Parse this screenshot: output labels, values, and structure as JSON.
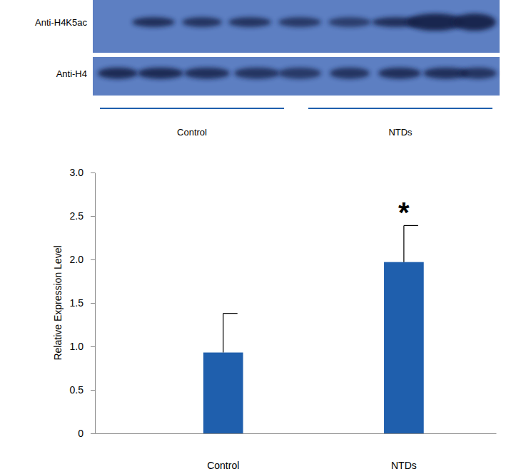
{
  "chart_data": {
    "type": "bar",
    "y_label": "Relative Expression Level",
    "categories": [
      "Control",
      "NTDs"
    ],
    "values": [
      0.93,
      1.97
    ],
    "errors": [
      0.45,
      0.42
    ],
    "color": "#1f5fad",
    "ylim": [
      0,
      3
    ],
    "yticks": [
      0,
      0.5,
      {
        "value": 1,
        "label": "1.0"
      },
      1.5,
      {
        "value": 2,
        "label": "2.0"
      },
      2.5,
      {
        "value": 3,
        "label": "3.0"
      }
    ],
    "grid": false,
    "annotations": [
      {
        "text": "*",
        "category": "NTDs"
      }
    ]
  },
  "blot": {
    "rows": [
      "Anti-H4K5ac",
      "Anti-H4"
    ],
    "groups": [
      "Control",
      "NTDs"
    ]
  }
}
